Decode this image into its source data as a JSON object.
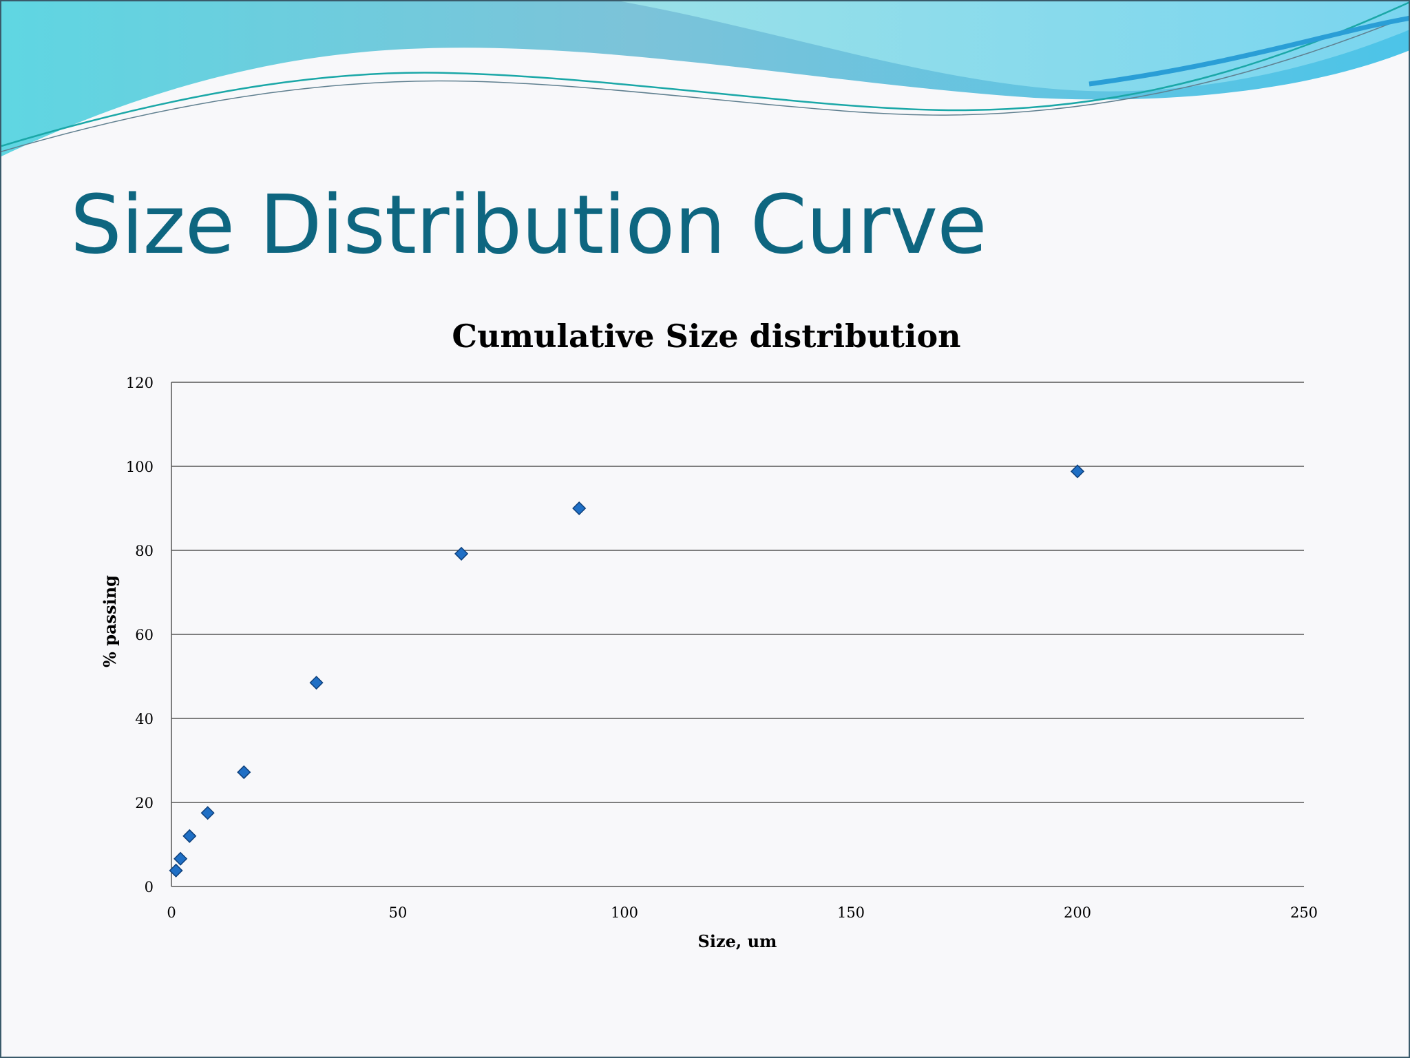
{
  "slide": {
    "title": "Size Distribution Curve",
    "title_color": "#0e6680"
  },
  "chart_data": {
    "type": "scatter",
    "title": "Cumulative Size distribution",
    "xlabel": "Size, um",
    "ylabel": "% passing",
    "xlim": [
      0,
      250
    ],
    "ylim": [
      0,
      120
    ],
    "x_ticks": [
      0,
      50,
      100,
      150,
      200,
      250
    ],
    "y_ticks": [
      0,
      20,
      40,
      60,
      80,
      100,
      120
    ],
    "x_tick_labels": [
      "0",
      "50",
      "100",
      "150",
      "200",
      "250"
    ],
    "y_tick_labels": [
      "0",
      "20",
      "40",
      "60",
      "80",
      "100",
      "120"
    ],
    "grid": "horizontal",
    "legend": "none",
    "marker": "diamond",
    "marker_color": "#1f6fc5",
    "series": [
      {
        "x": [
          1,
          2,
          4,
          8,
          16,
          32,
          64,
          90,
          200
        ],
        "y": [
          3.8,
          6.6,
          12,
          17.5,
          27.2,
          48.5,
          79.2,
          90,
          98.8
        ]
      }
    ]
  }
}
